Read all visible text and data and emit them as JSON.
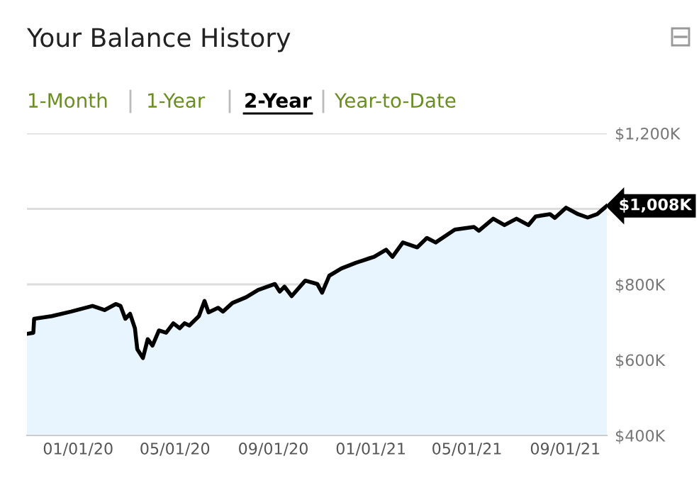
{
  "chart_data": {
    "type": "area",
    "title": "Your Balance History",
    "annotations": [
      "1-Month",
      "1-Year",
      "2-Year",
      "Year-to-Date",
      {
        "text": "$1,008K",
        "x": "2021-10-23",
        "y": 1008
      }
    ],
    "x": [
      "2019-10-29",
      "2019-11-06",
      "2019-11-07",
      "2019-11-29",
      "2019-12-23",
      "2020-01-19",
      "2020-02-03",
      "2020-02-17",
      "2020-02-23",
      "2020-02-29",
      "2020-03-06",
      "2020-03-12",
      "2020-03-15",
      "2020-03-22",
      "2020-03-28",
      "2020-04-03",
      "2020-04-11",
      "2020-04-20",
      "2020-04-29",
      "2020-05-07",
      "2020-05-13",
      "2020-05-19",
      "2020-05-31",
      "2020-06-07",
      "2020-06-12",
      "2020-06-24",
      "2020-06-30",
      "2020-07-12",
      "2020-07-29",
      "2020-08-13",
      "2020-09-03",
      "2020-09-09",
      "2020-09-15",
      "2020-09-24",
      "2020-10-11",
      "2020-10-26",
      "2020-11-01",
      "2020-11-10",
      "2020-11-25",
      "2020-12-13",
      "2020-12-30",
      "2021-01-05",
      "2021-01-20",
      "2021-01-28",
      "2021-02-10",
      "2021-02-28",
      "2021-03-12",
      "2021-03-23",
      "2021-04-16",
      "2021-05-10",
      "2021-05-16",
      "2021-06-03",
      "2021-06-17",
      "2021-07-02",
      "2021-07-17",
      "2021-07-26",
      "2021-08-13",
      "2021-08-19",
      "2021-09-02",
      "2021-09-17",
      "2021-09-29",
      "2021-10-11",
      "2021-10-23"
    ],
    "series": [
      {
        "color": "#000000",
        "values": [
          669,
          672,
          709,
          716,
          728,
          743,
          732,
          748,
          743,
          709,
          722,
          684,
          628,
          605,
          655,
          638,
          678,
          672,
          697,
          684,
          697,
          691,
          716,
          756,
          726,
          738,
          728,
          751,
          766,
          785,
          801,
          781,
          794,
          769,
          810,
          801,
          778,
          823,
          842,
          857,
          869,
          873,
          892,
          873,
          911,
          898,
          923,
          911,
          945,
          952,
          942,
          974,
          957,
          974,
          957,
          980,
          986,
          976,
          1003,
          986,
          977,
          986,
          1008
        ]
      }
    ],
    "xlim": [
      "2019-10-29",
      "2021-10-23"
    ],
    "xticks": [
      {
        "value": "2020-01-01",
        "label": "01/01/20"
      },
      {
        "value": "2020-05-01",
        "label": "05/01/20"
      },
      {
        "value": "2020-09-01",
        "label": "09/01/20"
      },
      {
        "value": "2021-01-01",
        "label": "01/01/21"
      },
      {
        "value": "2021-05-01",
        "label": "05/01/21"
      },
      {
        "value": "2021-09-01",
        "label": "09/01/21"
      }
    ],
    "ylim": [
      400,
      1200
    ],
    "yticks": [
      {
        "value": 400,
        "label": "$400K"
      },
      {
        "value": 600,
        "label": "$600K"
      },
      {
        "value": 800,
        "label": "$800K"
      },
      {
        "value": 1000,
        "label": null
      },
      {
        "value": 1200,
        "label": "$1,200K"
      }
    ],
    "grid": "y",
    "legend": false
  }
}
